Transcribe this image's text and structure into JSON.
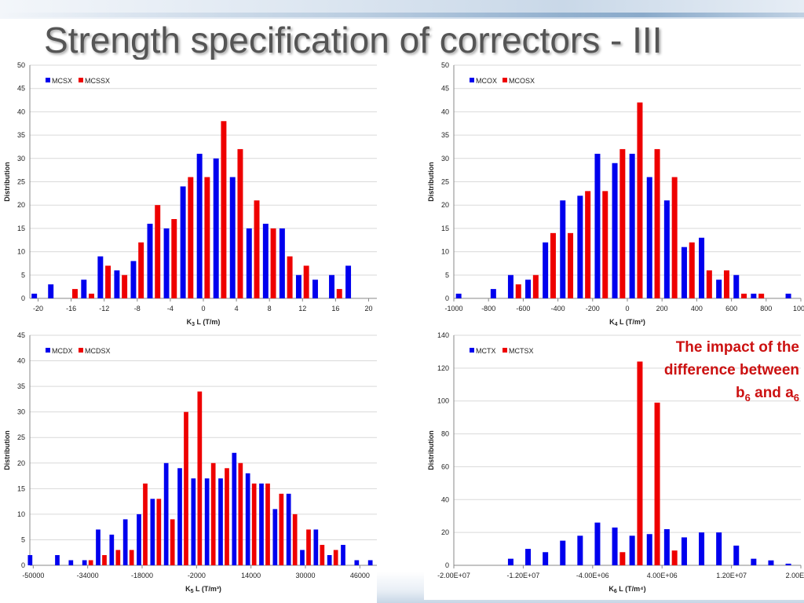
{
  "title": "Strength specification of correctors - III",
  "note": {
    "line1": "The impact of the",
    "line2": "difference between",
    "b": "b",
    "b_sub": "6",
    "and": "and",
    "a": "a",
    "a_sub": "6"
  },
  "colors": {
    "blue": "#0000ee",
    "red": "#ee0000",
    "grid": "#d9d9d9",
    "axis": "#888888"
  },
  "chart_data": [
    {
      "type": "bar",
      "legend_position": "top-left",
      "grid": true,
      "ylabel": "Distribution",
      "xlabel": {
        "base": "K",
        "sub": "3",
        "rest": " L (T/m)"
      },
      "ylim": [
        0,
        50
      ],
      "yticks": [
        0,
        5,
        10,
        15,
        20,
        25,
        30,
        35,
        40,
        45,
        50
      ],
      "xlim": [
        -21,
        21
      ],
      "xticks": [
        -20,
        -16,
        -12,
        -8,
        -4,
        0,
        4,
        8,
        12,
        16,
        20
      ],
      "xticklabels": [
        "-20",
        "-16",
        "-12",
        "-8",
        "-4",
        "0",
        "4",
        "8",
        "12",
        "16",
        "20"
      ],
      "x": [
        -20,
        -18,
        -16,
        -14,
        -12,
        -10,
        -8,
        -6,
        -4,
        -2,
        0,
        2,
        4,
        6,
        8,
        10,
        12,
        14,
        16,
        18
      ],
      "series": [
        {
          "name": "MCSX",
          "color": "#0000ee",
          "values": [
            1,
            3,
            0,
            4,
            9,
            6,
            8,
            16,
            15,
            24,
            31,
            30,
            26,
            15,
            16,
            15,
            5,
            4,
            5,
            7
          ]
        },
        {
          "name": "MCSSX",
          "color": "#ee0000",
          "values": [
            0,
            0,
            2,
            1,
            7,
            5,
            12,
            20,
            17,
            26,
            26,
            38,
            32,
            21,
            15,
            9,
            7,
            0,
            2,
            0
          ]
        }
      ]
    },
    {
      "type": "bar",
      "legend_position": "top-left",
      "grid": true,
      "ylabel": "Distribution",
      "xlabel": {
        "base": "K",
        "sub": "4",
        "rest": " L (T/m²)"
      },
      "ylim": [
        0,
        50
      ],
      "yticks": [
        0,
        5,
        10,
        15,
        20,
        25,
        30,
        35,
        40,
        45,
        50
      ],
      "xlim": [
        -1000,
        1000
      ],
      "xticks": [
        -1000,
        -800,
        -600,
        -400,
        -200,
        0,
        200,
        400,
        600,
        800,
        1000
      ],
      "xticklabels": [
        "-1000",
        "-800",
        "-600",
        "-400",
        "-200",
        "0",
        "200",
        "400",
        "600",
        "800",
        "1000"
      ],
      "x": [
        -950,
        -850,
        -750,
        -650,
        -550,
        -450,
        -350,
        -250,
        -150,
        -50,
        50,
        150,
        250,
        350,
        450,
        550,
        650,
        750,
        850,
        950
      ],
      "series": [
        {
          "name": "MCOX",
          "color": "#0000ee",
          "values": [
            1,
            0,
            2,
            5,
            4,
            12,
            21,
            22,
            31,
            29,
            31,
            26,
            21,
            11,
            13,
            4,
            5,
            1,
            0,
            1
          ]
        },
        {
          "name": "MCOSX",
          "color": "#ee0000",
          "values": [
            0,
            0,
            0,
            3,
            5,
            14,
            14,
            23,
            23,
            32,
            42,
            32,
            26,
            12,
            6,
            6,
            1,
            1,
            0,
            0
          ]
        }
      ]
    },
    {
      "type": "bar",
      "legend_position": "top-left",
      "grid": true,
      "ylabel": "Distribution",
      "xlabel": {
        "base": "K",
        "sub": "5",
        "rest": " L (T/m³)"
      },
      "ylim": [
        0,
        45
      ],
      "yticks": [
        0,
        5,
        10,
        15,
        20,
        25,
        30,
        35,
        40,
        45
      ],
      "xlim": [
        -51000,
        51000
      ],
      "xticks": [
        -50000,
        -34000,
        -18000,
        -2000,
        14000,
        30000,
        46000
      ],
      "xticklabels": [
        "-50000",
        "-34000",
        "-18000",
        "-2000",
        "14000",
        "30000",
        "46000"
      ],
      "x": [
        -50000,
        -46000,
        -42000,
        -38000,
        -34000,
        -30000,
        -26000,
        -22000,
        -18000,
        -14000,
        -10000,
        -6000,
        -2000,
        2000,
        6000,
        10000,
        14000,
        18000,
        22000,
        26000,
        30000,
        34000,
        38000,
        42000,
        46000,
        50000
      ],
      "series": [
        {
          "name": "MCDX",
          "color": "#0000ee",
          "values": [
            2,
            0,
            2,
            1,
            1,
            7,
            6,
            9,
            10,
            13,
            20,
            19,
            17,
            17,
            17,
            22,
            18,
            16,
            11,
            14,
            3,
            7,
            2,
            4,
            1,
            1
          ]
        },
        {
          "name": "MCDSX",
          "color": "#ee0000",
          "values": [
            0,
            0,
            0,
            0,
            1,
            2,
            3,
            3,
            16,
            13,
            9,
            30,
            34,
            20,
            19,
            20,
            16,
            16,
            14,
            10,
            7,
            4,
            3,
            0,
            0,
            0
          ]
        }
      ]
    },
    {
      "type": "bar",
      "legend_position": "top-left",
      "grid": true,
      "ylabel": "Distribution",
      "xlabel": {
        "base": "K",
        "sub": "6",
        "rest": " L (T/m⁴)"
      },
      "ylim": [
        0,
        140
      ],
      "yticks": [
        0,
        20,
        40,
        60,
        80,
        100,
        120,
        140
      ],
      "xlim": [
        -20000000,
        20000000
      ],
      "xticks": [
        -20000000,
        -12000000,
        -4000000,
        4000000,
        12000000,
        20000000
      ],
      "xticklabels": [
        "-2.00E+07",
        "-1.20E+07",
        "-4.00E+06",
        "4.00E+06",
        "1.20E+07",
        "2.00E+07"
      ],
      "x": [
        -19000000,
        -17000000,
        -15000000,
        -13000000,
        -11000000,
        -9000000,
        -7000000,
        -5000000,
        -3000000,
        -1000000,
        1000000,
        3000000,
        5000000,
        7000000,
        9000000,
        11000000,
        13000000,
        15000000,
        17000000,
        19000000
      ],
      "series": [
        {
          "name": "MCTX",
          "color": "#0000ee",
          "values": [
            0,
            0,
            0,
            4,
            10,
            8,
            15,
            18,
            26,
            23,
            18,
            19,
            22,
            17,
            20,
            20,
            12,
            4,
            3,
            1
          ]
        },
        {
          "name": "MCTSX",
          "color": "#ee0000",
          "values": [
            0,
            0,
            0,
            0,
            0,
            0,
            0,
            0,
            0,
            8,
            124,
            99,
            9,
            0,
            0,
            0,
            0,
            0,
            0,
            0
          ]
        }
      ]
    }
  ]
}
